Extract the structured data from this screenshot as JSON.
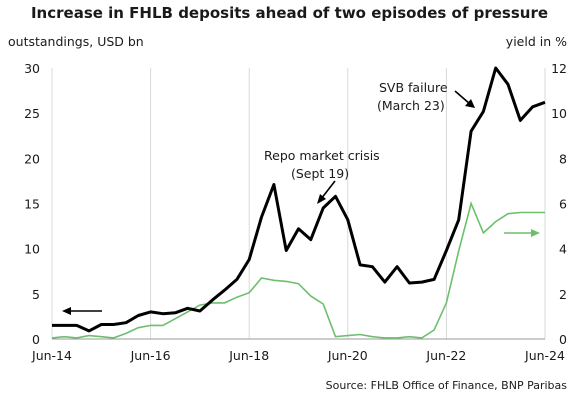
{
  "chart_data": {
    "type": "line",
    "title": "Increase in FHLB deposits ahead of two episodes of pressure",
    "ylabel_left": "outstandings, USD bn",
    "ylabel_right": "yield in %",
    "x_tick_labels": [
      "Jun-14",
      "Jun-16",
      "Jun-18",
      "Jun-20",
      "Jun-22",
      "Jun-24"
    ],
    "x_range": [
      2014.42,
      2024.42
    ],
    "y_left_ticks": [
      0,
      5,
      10,
      15,
      20,
      25,
      30
    ],
    "y_left_range": [
      0,
      30
    ],
    "y_right_ticks": [
      0,
      2,
      4,
      6,
      8,
      10,
      12
    ],
    "y_right_range": [
      0,
      12
    ],
    "grid": "vertical",
    "colors": {
      "deposits": "#000000",
      "yield": "#6dbf6d"
    },
    "series": [
      {
        "axis": "left",
        "x": [
          2014.42,
          2014.67,
          2014.92,
          2015.17,
          2015.42,
          2015.67,
          2015.92,
          2016.17,
          2016.42,
          2016.67,
          2016.92,
          2017.17,
          2017.42,
          2017.67,
          2017.92,
          2018.17,
          2018.42,
          2018.67,
          2018.92,
          2019.17,
          2019.42,
          2019.67,
          2019.92,
          2020.17,
          2020.42,
          2020.67,
          2020.92,
          2021.17,
          2021.42,
          2021.67,
          2021.92,
          2022.17,
          2022.42,
          2022.67,
          2022.92,
          2023.17,
          2023.42,
          2023.67,
          2023.92,
          2024.17,
          2024.42
        ],
        "values": [
          1.5,
          1.5,
          1.5,
          0.9,
          1.6,
          1.6,
          1.8,
          2.6,
          3.0,
          2.8,
          2.9,
          3.4,
          3.1,
          4.3,
          5.4,
          6.6,
          8.8,
          13.5,
          17.1,
          9.8,
          12.2,
          11.0,
          14.5,
          15.8,
          13.2,
          8.2,
          8.0,
          6.3,
          8.0,
          6.2,
          6.3,
          6.6,
          9.8,
          13.2,
          23.0,
          25.2,
          30.0,
          28.2,
          24.2,
          25.7,
          26.2
        ]
      },
      {
        "axis": "right",
        "x": [
          2014.42,
          2014.67,
          2014.92,
          2015.17,
          2015.42,
          2015.67,
          2015.92,
          2016.17,
          2016.42,
          2016.67,
          2016.92,
          2017.17,
          2017.42,
          2017.67,
          2017.92,
          2018.17,
          2018.42,
          2018.67,
          2018.92,
          2019.17,
          2019.42,
          2019.67,
          2019.92,
          2020.17,
          2020.42,
          2020.67,
          2020.92,
          2021.17,
          2021.42,
          2021.67,
          2021.92,
          2022.17,
          2022.42,
          2022.67,
          2022.92,
          2023.17,
          2023.42,
          2023.67,
          2023.92,
          2024.17,
          2024.42
        ],
        "values": [
          0.05,
          0.1,
          0.05,
          0.15,
          0.1,
          0.05,
          0.25,
          0.5,
          0.6,
          0.6,
          0.9,
          1.2,
          1.5,
          1.6,
          1.6,
          1.85,
          2.05,
          2.7,
          2.6,
          2.55,
          2.45,
          1.9,
          1.55,
          0.1,
          0.15,
          0.2,
          0.1,
          0.05,
          0.05,
          0.1,
          0.05,
          0.4,
          1.6,
          3.9,
          6.0,
          4.7,
          5.2,
          5.55,
          5.6,
          5.6,
          5.6
        ]
      }
    ],
    "annotations": {
      "repo_line1": "Repo market crisis",
      "repo_line2": "(Sept 19)",
      "svb_line1": "SVB failure",
      "svb_line2": "(March 23)"
    },
    "source": "Source: FHLB Office of Finance, BNP Paribas"
  }
}
